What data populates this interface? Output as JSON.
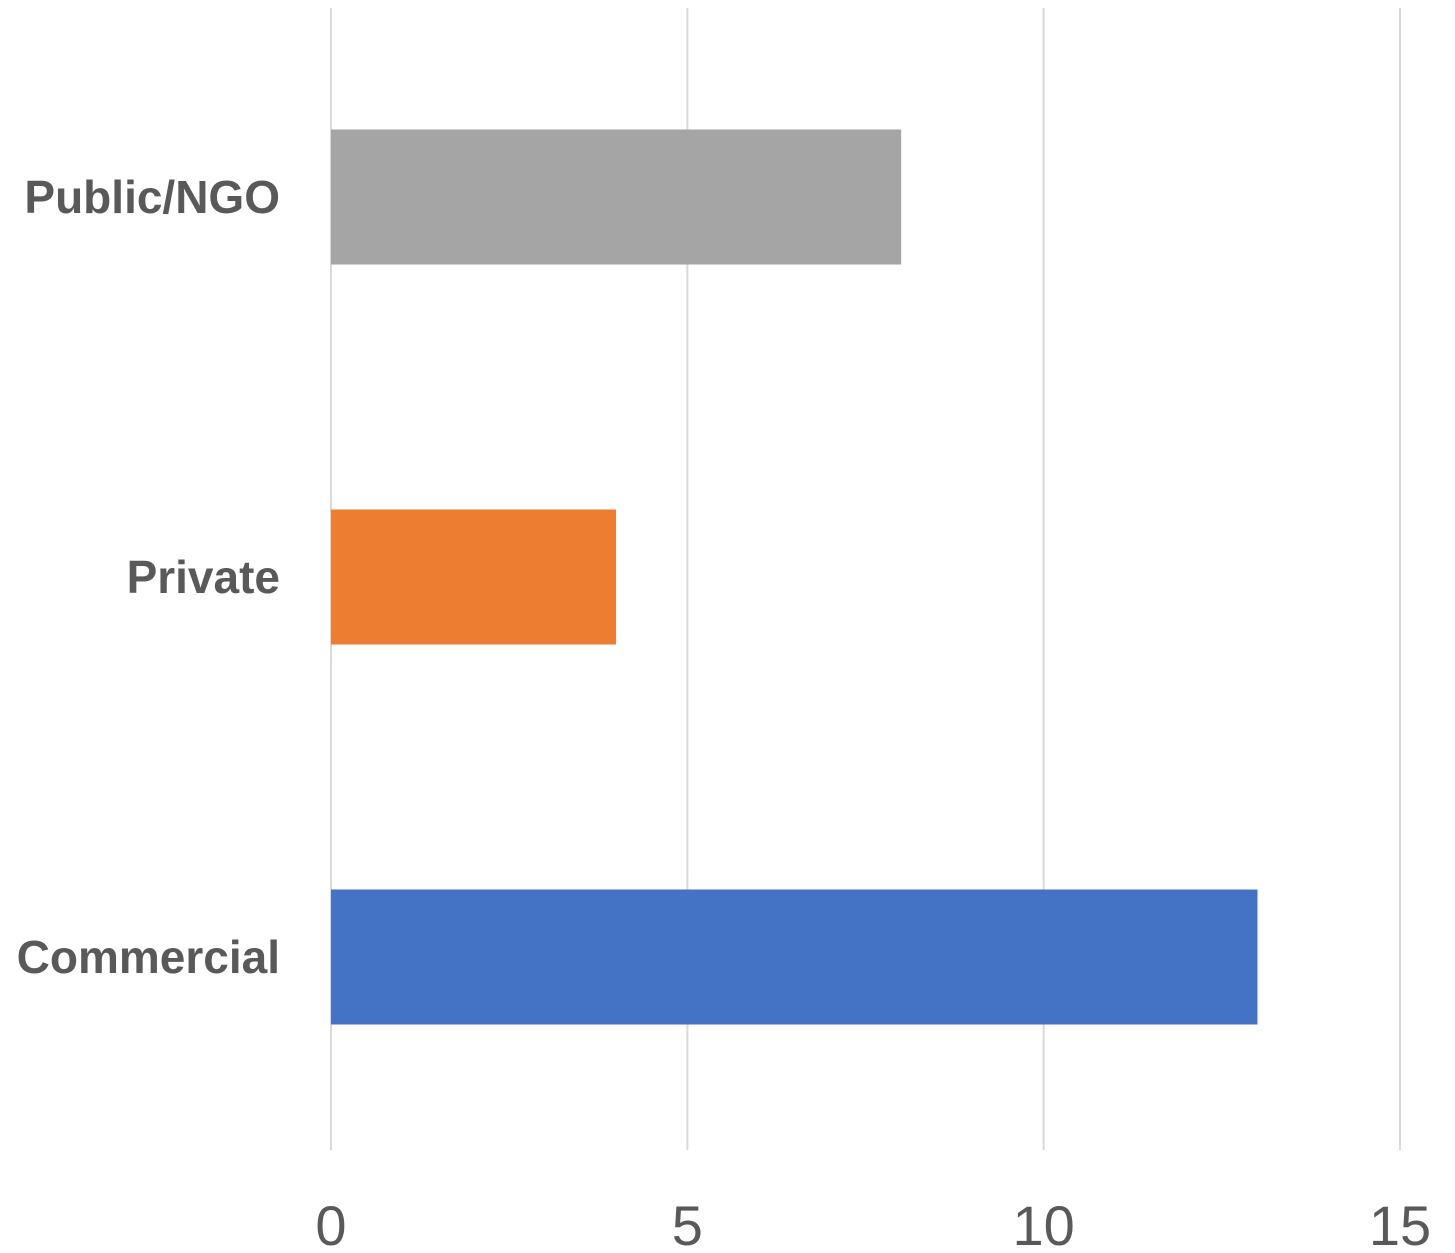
{
  "chart_data": {
    "type": "bar",
    "orientation": "horizontal",
    "categories": [
      "Commercial",
      "Private",
      "Public/NGO"
    ],
    "values": [
      13,
      4,
      8
    ],
    "colors": [
      "#4472C4",
      "#ED7D31",
      "#A5A5A5"
    ],
    "xlim": [
      0,
      15
    ],
    "xticks": [
      0,
      5,
      10,
      15
    ],
    "tick_labels": [
      "0",
      "5",
      "10",
      "15"
    ],
    "grid": true,
    "legend": "none",
    "title": "",
    "xlabel": "",
    "ylabel": ""
  }
}
